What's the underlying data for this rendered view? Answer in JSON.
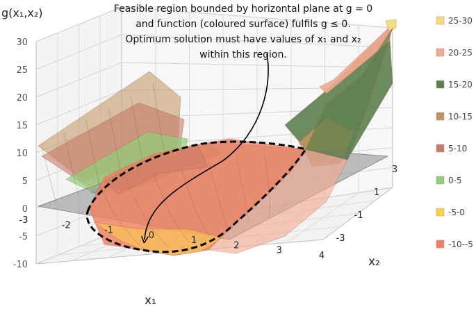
{
  "chart_data": {
    "type": "surface",
    "title": "",
    "zlabel": "g(x₁,x₂)",
    "xlabel": "x₁",
    "ylabel": "x₂",
    "zlim": [
      -10,
      30
    ],
    "z_ticks": [
      "30",
      "25",
      "20",
      "15",
      "10",
      "5",
      "0",
      "-5",
      "-10"
    ],
    "x_ticks": [
      "-3",
      "-2",
      "-1",
      "0",
      "1",
      "2",
      "3",
      "4"
    ],
    "y_ticks": [
      "-3",
      "-1",
      "1",
      "3"
    ],
    "grid": true,
    "plane_z": 0,
    "legend_position": "right",
    "legend": [
      {
        "label": "25-30",
        "color": "#f9da78"
      },
      {
        "label": "20-25",
        "color": "#f3a98f"
      },
      {
        "label": "15-20",
        "color": "#5c7f4f"
      },
      {
        "label": "10-15",
        "color": "#c2945c"
      },
      {
        "label": "5-10",
        "color": "#c77a6a"
      },
      {
        "label": "0-5",
        "color": "#8fd078"
      },
      {
        "label": "-5-0",
        "color": "#fbd24c"
      },
      {
        "label": "-10--5",
        "color": "#f08060"
      }
    ],
    "annotation_lines": [
      "Feasible region bounded by horizontal plane at g = 0",
      "and function (coloured surface) fulfils g ≤ 0.",
      "Optimum solution must have values of x₁ and x₂",
      "within this region."
    ]
  }
}
